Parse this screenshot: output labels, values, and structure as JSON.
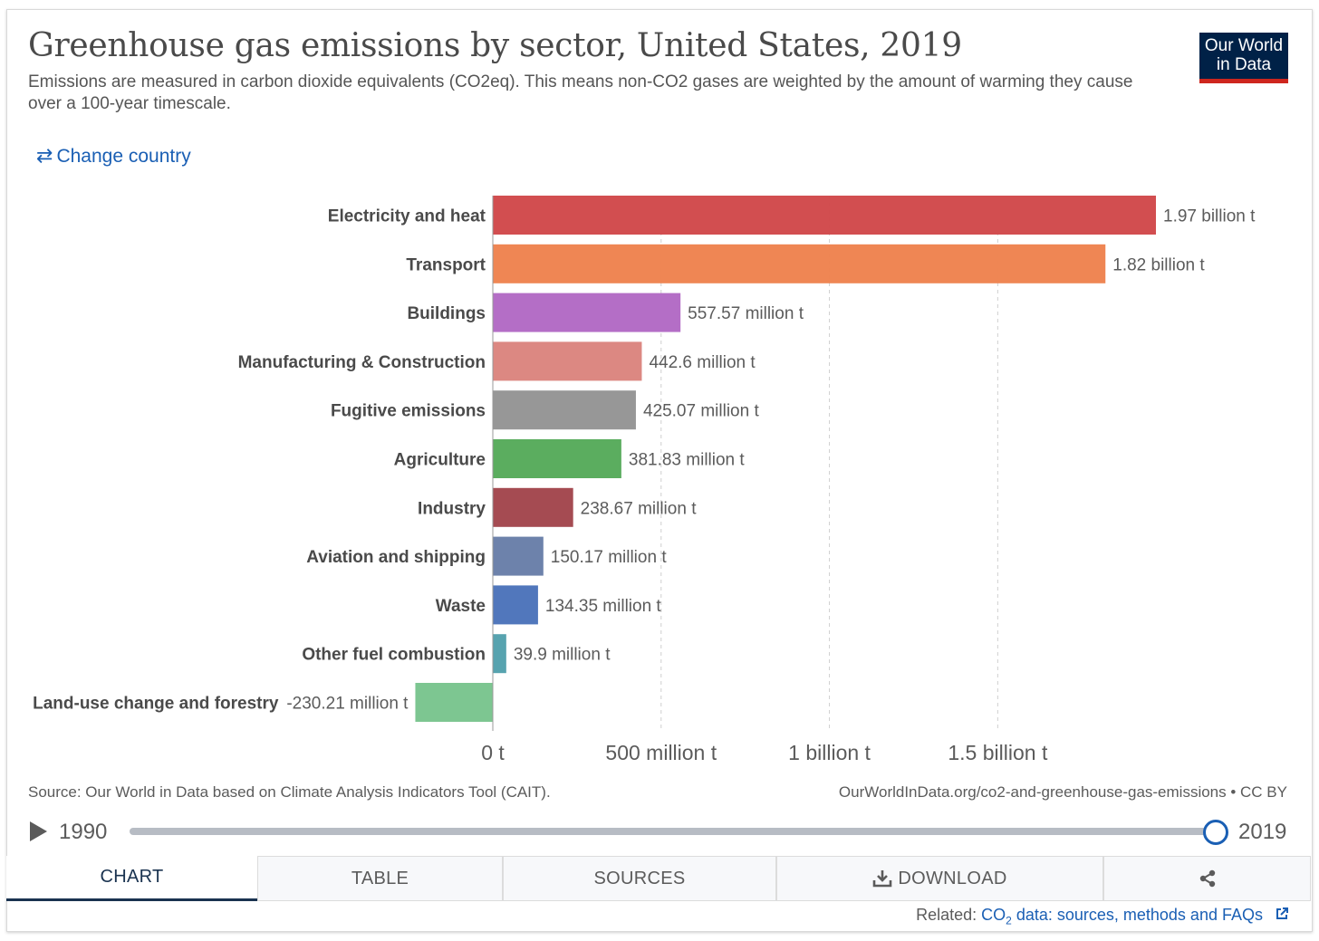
{
  "header": {
    "title": "Greenhouse gas emissions by sector, United States, 2019",
    "subtitle": "Emissions are measured in carbon dioxide equivalents (CO2eq). This means non-CO2 gases are weighted by the amount of warming they cause over a 100-year timescale.",
    "logo_line1": "Our World",
    "logo_line2": "in Data",
    "change_country": "Change country"
  },
  "chart_data": {
    "type": "bar",
    "orientation": "horizontal",
    "categories": [
      "Electricity and heat",
      "Transport",
      "Buildings",
      "Manufacturing & Construction",
      "Fugitive emissions",
      "Agriculture",
      "Industry",
      "Aviation and shipping",
      "Waste",
      "Other fuel combustion",
      "Land-use change and forestry"
    ],
    "values": [
      1970000000,
      1820000000,
      557570000,
      442600000,
      425070000,
      381830000,
      238670000,
      150170000,
      134350000,
      39900000,
      -230210000
    ],
    "value_labels": [
      "1.97 billion t",
      "1.82 billion t",
      "557.57 million t",
      "442.6 million t",
      "425.07 million t",
      "381.83 million t",
      "238.67 million t",
      "150.17 million t",
      "134.35 million t",
      "39.9 million t",
      "-230.21 million t"
    ],
    "colors": [
      "#d14a4c",
      "#ef8451",
      "#b36bc5",
      "#db8680",
      "#959595",
      "#58ab5c",
      "#a3474f",
      "#6a7fa9",
      "#4e74bb",
      "#54a1ad",
      "#7ac58f"
    ],
    "x_ticks": [
      0,
      500000000,
      1000000000,
      1500000000
    ],
    "x_tick_labels": [
      "0 t",
      "500 million t",
      "1 billion t",
      "1.5 billion t"
    ],
    "xlim": [
      -230210000,
      1970000000
    ],
    "grid": "vertical dashed",
    "legend": "none"
  },
  "footer": {
    "source": "Source: Our World in Data based on Climate Analysis Indicators Tool (CAIT).",
    "url": "OurWorldInData.org/co2-and-greenhouse-gas-emissions • CC BY",
    "start_year": "1990",
    "end_year": "2019",
    "slider_fraction": 1.0
  },
  "tabs": [
    "CHART",
    "TABLE",
    "SOURCES",
    "DOWNLOAD"
  ],
  "active_tab": "CHART",
  "related": {
    "prefix": "Related:",
    "link_pre": "CO",
    "link_sub": "2",
    "link_post": " data: sources, methods and FAQs"
  },
  "colors": {
    "accent": "#1a5fb4",
    "navy": "#002147",
    "logo_red": "#ce261e"
  }
}
